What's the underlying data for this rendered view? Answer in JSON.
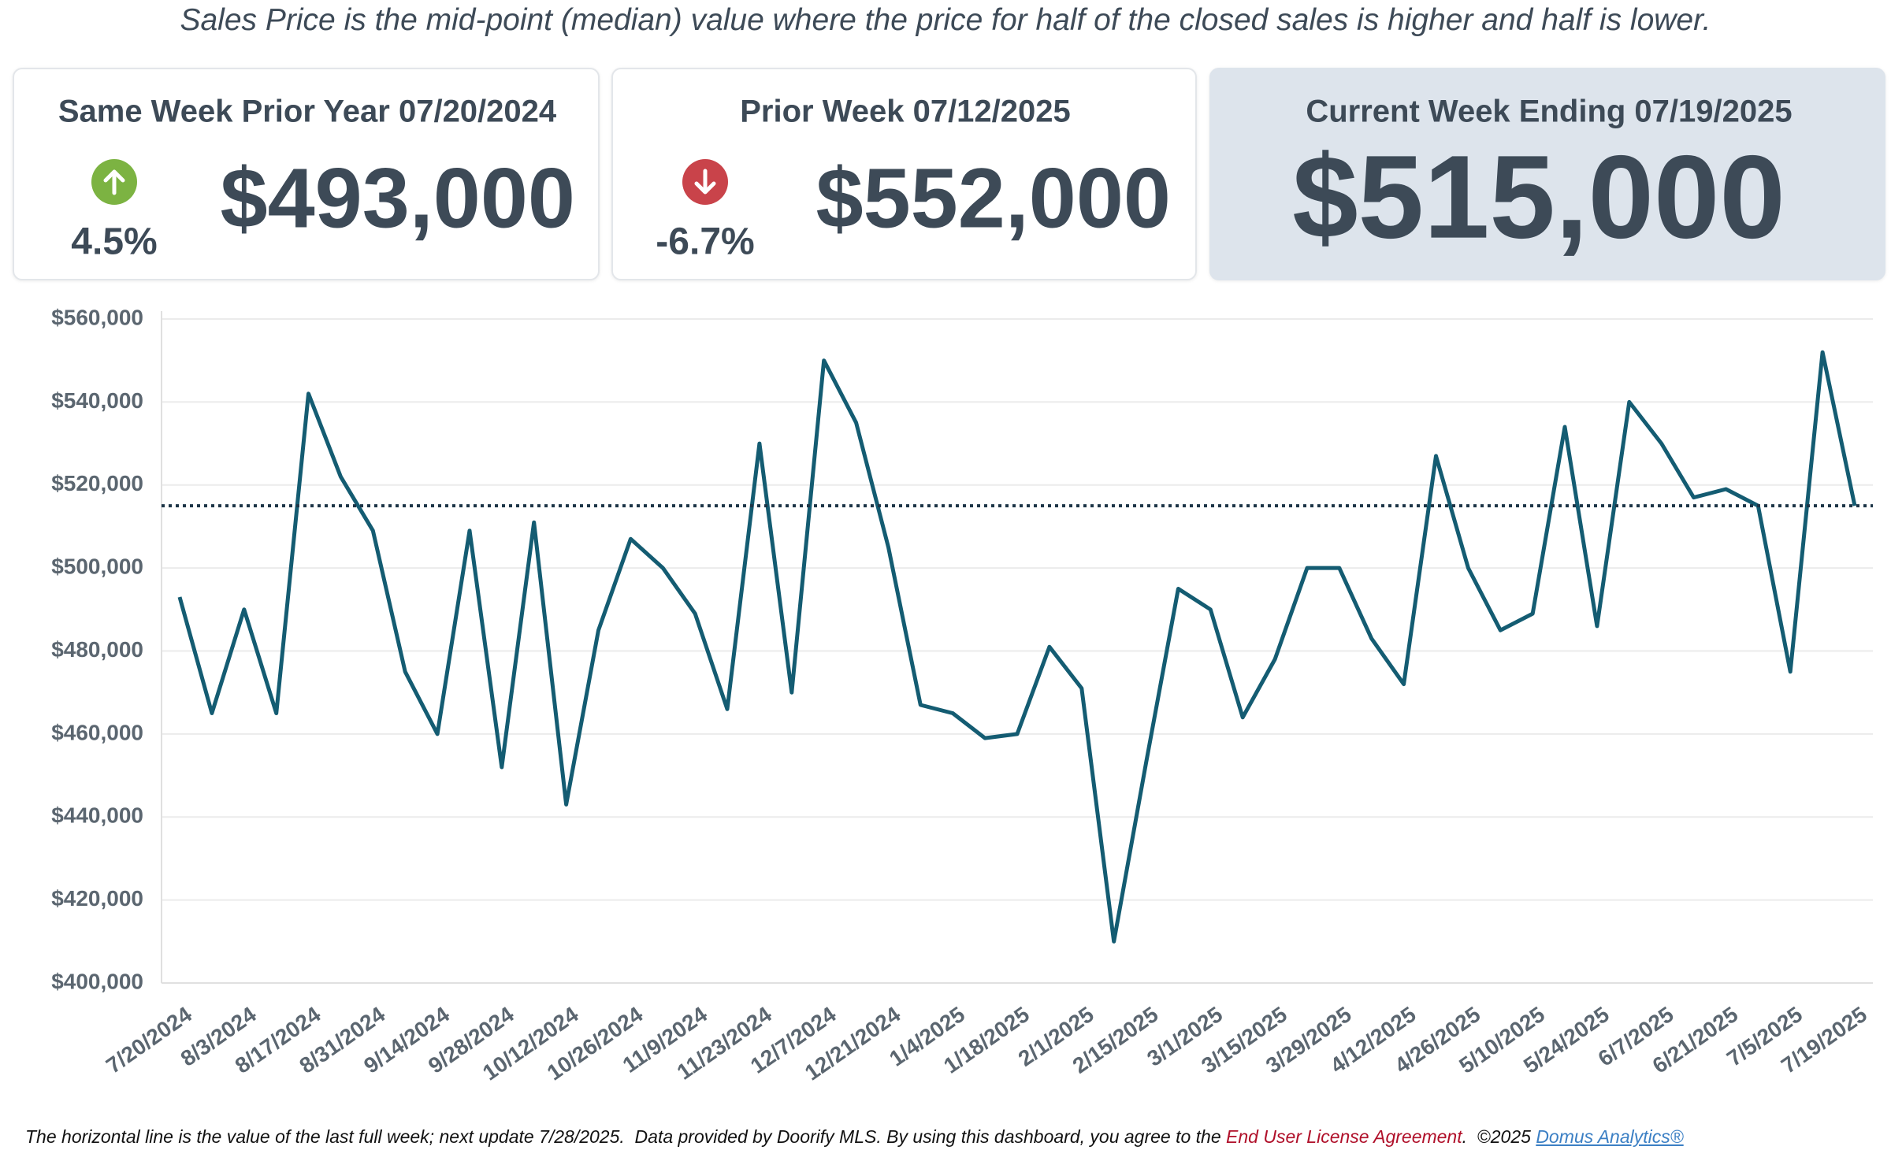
{
  "subtitle": "Sales Price is the mid-point (median) value where the price for half of the closed sales is higher and half is lower.",
  "cards": [
    {
      "title": "Same Week Prior Year 07/20/2024",
      "change": "4.5%",
      "direction": "up",
      "value": "$493,000"
    },
    {
      "title": "Prior Week 07/12/2025",
      "change": "-6.7%",
      "direction": "down",
      "value": "$552,000"
    },
    {
      "title": "Current Week Ending 07/19/2025",
      "value": "$515,000"
    }
  ],
  "chart_data": {
    "type": "line",
    "categories": [
      "7/20/2024",
      null,
      "8/3/2024",
      null,
      "8/17/2024",
      null,
      "8/31/2024",
      null,
      "9/14/2024",
      null,
      "9/28/2024",
      null,
      "10/12/2024",
      null,
      "10/26/2024",
      null,
      "11/9/2024",
      null,
      "11/23/2024",
      null,
      "12/7/2024",
      null,
      "12/21/2024",
      null,
      "1/4/2025",
      null,
      "1/18/2025",
      null,
      "2/1/2025",
      null,
      "2/15/2025",
      null,
      "3/1/2025",
      null,
      "3/15/2025",
      null,
      "3/29/2025",
      null,
      "4/12/2025",
      null,
      "4/26/2025",
      null,
      "5/10/2025",
      null,
      "5/24/2025",
      null,
      "6/7/2025",
      null,
      "6/21/2025",
      null,
      "7/5/2025",
      null,
      "7/19/2025"
    ],
    "values": [
      493000,
      465000,
      490000,
      465000,
      542000,
      522000,
      509000,
      475000,
      460000,
      509000,
      452000,
      511000,
      443000,
      485000,
      507000,
      500000,
      489000,
      466000,
      530000,
      470000,
      550000,
      535000,
      505000,
      467000,
      465000,
      459000,
      460000,
      481000,
      471000,
      410000,
      453000,
      495000,
      490000,
      464000,
      478000,
      500000,
      500000,
      483000,
      472000,
      527000,
      500000,
      485000,
      489000,
      534000,
      486000,
      540000,
      530000,
      517000,
      519000,
      515000,
      475000,
      552000,
      515000
    ],
    "color": "#145c72",
    "reference_line": 515000,
    "reference_color": "#1d3547",
    "ylim": [
      400000,
      560000
    ],
    "yticks": [
      {
        "value": 400000,
        "label": "$400,000"
      },
      {
        "value": 420000,
        "label": "$420,000"
      },
      {
        "value": 440000,
        "label": "$440,000"
      },
      {
        "value": 460000,
        "label": "$460,000"
      },
      {
        "value": 480000,
        "label": "$480,000"
      },
      {
        "value": 500000,
        "label": "$500,000"
      },
      {
        "value": 520000,
        "label": "$520,000"
      },
      {
        "value": 540000,
        "label": "$540,000"
      },
      {
        "value": 560000,
        "label": "$560,000"
      }
    ],
    "grid": true
  },
  "footer": {
    "text_1": "The horizontal line is the value of the last full week; next update 7/28/2025.  Data provided by Doorify MLS. By using this dashboard, you agree to the ",
    "link_1": "End User License Agreement",
    "text_2": ".  ©2025 ",
    "link_2": "Domus Analytics®"
  }
}
